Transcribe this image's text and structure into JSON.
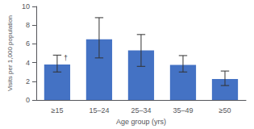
{
  "chart_data": {
    "type": "bar",
    "categories": [
      "≥15",
      "15–24",
      "25–34",
      "35–49",
      "≥50"
    ],
    "values": [
      3.8,
      6.5,
      5.3,
      3.75,
      2.25
    ],
    "error_upper": [
      1.0,
      2.3,
      1.7,
      1.0,
      0.85
    ],
    "error_lower": [
      0.8,
      2.0,
      1.7,
      0.75,
      0.7
    ],
    "color": "#4472C4",
    "xlabel": "Age group (yrs)",
    "ylabel": "Visits per 1,000 population",
    "ylim": [
      0,
      10
    ],
    "yticks": [
      0,
      2,
      4,
      6,
      8,
      10
    ],
    "grid": false,
    "annotations": [
      {
        "text": "†",
        "category": "≥15"
      }
    ]
  }
}
